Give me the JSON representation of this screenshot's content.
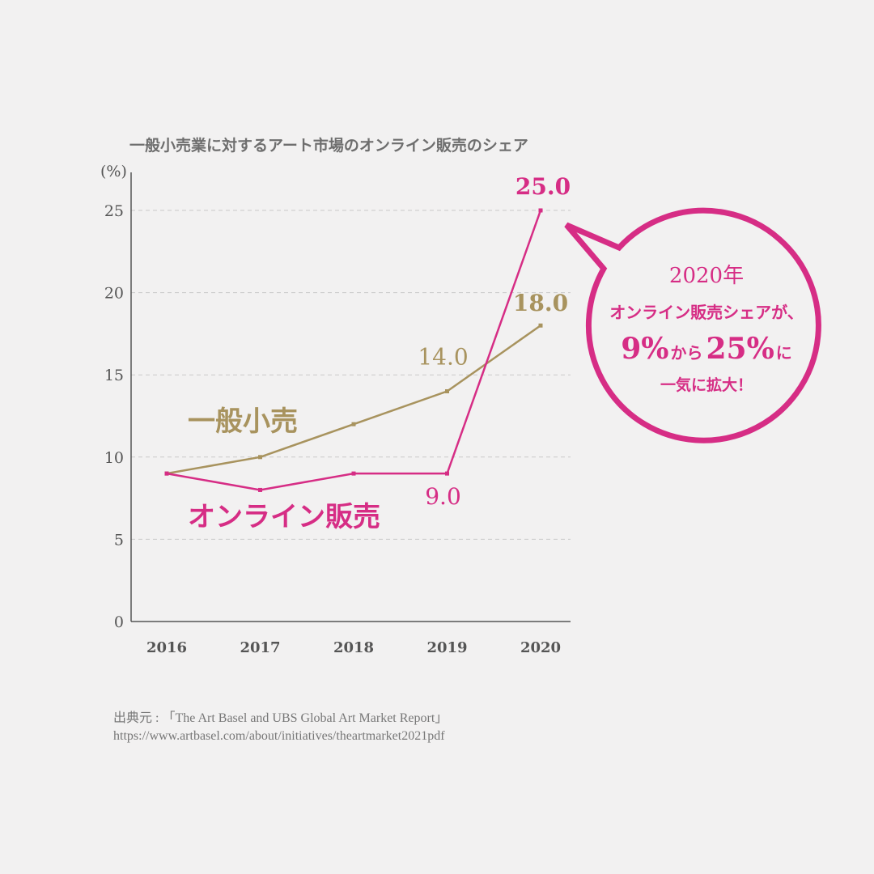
{
  "chart_data": {
    "type": "line",
    "title": "一般小売業に対するアート市場のオンライン販売のシェア",
    "ylabel": "(%)",
    "ylim": [
      0,
      27
    ],
    "yticks": [
      "0",
      "5",
      "10",
      "15",
      "20",
      "25"
    ],
    "categories": [
      "2016",
      "2017",
      "2018",
      "2019",
      "2020"
    ],
    "series": [
      {
        "name": "一般小売",
        "color": "#a8935e",
        "values": [
          9,
          10,
          12,
          14,
          18
        ]
      },
      {
        "name": "オンライン販売",
        "color": "#d62d85",
        "values": [
          9,
          8,
          9,
          9,
          25
        ]
      }
    ],
    "annotations": [
      {
        "text": "14.0",
        "series": 0,
        "index": 3,
        "color": "#a8935e",
        "bold": false
      },
      {
        "text": "18.0",
        "series": 0,
        "index": 4,
        "color": "#a8935e",
        "bold": true
      },
      {
        "text": "9.0",
        "series": 1,
        "index": 3,
        "color": "#d62d85",
        "bold": false
      },
      {
        "text": "25.0",
        "series": 1,
        "index": 4,
        "color": "#d62d85",
        "bold": true
      }
    ],
    "grid": true
  },
  "callout": {
    "line1": "2020年",
    "line2": "オンライン販売シェアが、",
    "big1": "9%",
    "mid1": "から",
    "big2": "25%",
    "mid2": "に",
    "line4": "一気に拡大！",
    "color": "#d62d85"
  },
  "source": {
    "line1": "出典元 : 「The Art Basel and UBS Global Art Market Report」",
    "line2": "https://www.artbasel.com/about/initiatives/theartmarket2021pdf"
  }
}
